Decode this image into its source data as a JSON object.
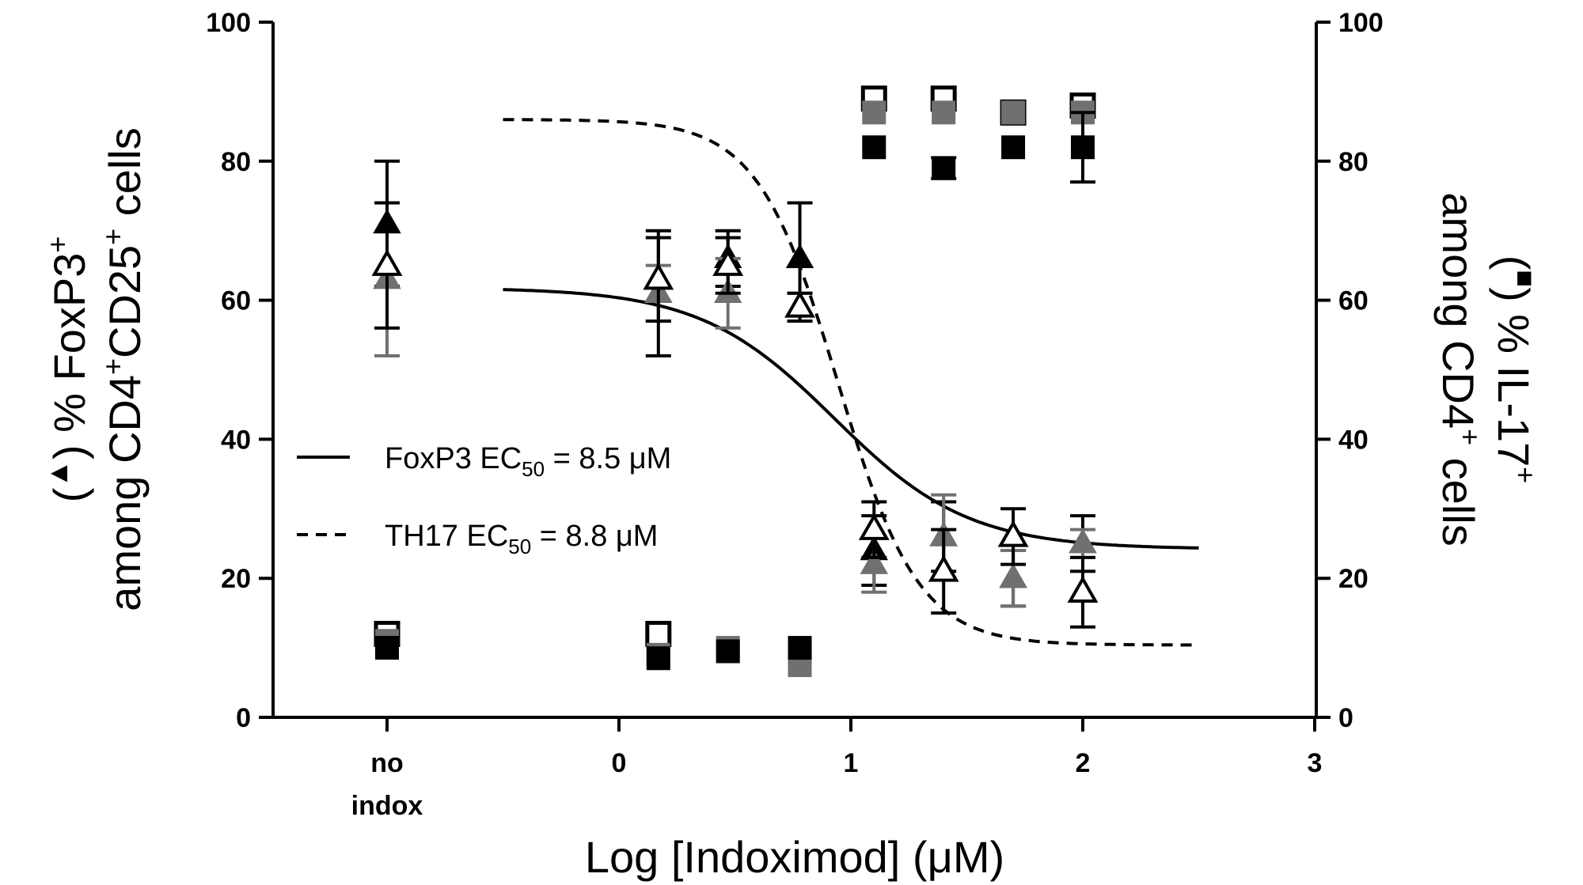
{
  "chart_data": {
    "type": "scatter",
    "xlabel": "Log [Indoximod] (μM)",
    "ylabel_left": {
      "line1_parts": [
        "(",
        "▲",
        ") % FoxP3",
        "+"
      ],
      "line2_parts": [
        "among CD4",
        "+",
        "CD25",
        "+",
        " cells"
      ]
    },
    "ylabel_right": {
      "line1_parts": [
        "(",
        "■",
        ") % IL-17",
        "+"
      ],
      "line2_parts": [
        "among CD4",
        "+",
        " cells"
      ]
    },
    "x_ticks": [
      "0",
      "1",
      "2",
      "3"
    ],
    "x_category_label_lines": [
      "no",
      "indox"
    ],
    "xlim": [
      -1,
      3
    ],
    "ylim": [
      0,
      100
    ],
    "y_ticks": [
      "0",
      "20",
      "40",
      "60",
      "80",
      "100"
    ],
    "y_right_ticks": [
      "0",
      "20",
      "40",
      "60",
      "80",
      "100"
    ],
    "legend": [
      {
        "line_style": "solid",
        "label_parts": [
          "FoxP3 EC",
          "50",
          " = 8.5 μM"
        ]
      },
      {
        "line_style": "dashed",
        "label_parts": [
          "TH17  EC",
          "50",
          " = 8.8 μM"
        ]
      }
    ],
    "fit_curves": [
      {
        "style": "solid",
        "ec50_log": 0.929,
        "top": 61.8,
        "bottom": 24.2,
        "hill": 1.5,
        "x_range": [
          -0.5,
          2.5
        ]
      },
      {
        "style": "dashed",
        "ec50_log": 0.944,
        "top": 86.0,
        "bottom": 10.4,
        "hill": 2.5,
        "x_range": [
          -0.5,
          2.5
        ]
      }
    ],
    "x_positions": [
      -1,
      0.17,
      0.47,
      0.78,
      1.1,
      1.4,
      1.7,
      2.0
    ],
    "foxp3_series": [
      {
        "color": "#000000",
        "marker": "triangle-filled",
        "values": [
          71,
          61,
          66,
          66,
          24,
          26,
          20,
          25
        ],
        "errors": [
          9,
          9,
          4,
          8,
          5,
          5,
          4,
          4
        ]
      },
      {
        "color": "#707070",
        "marker": "triangle-filled",
        "values": [
          63,
          61,
          61,
          59,
          22,
          26,
          20,
          25
        ],
        "errors": [
          11,
          4,
          5,
          2,
          4,
          6,
          4,
          2
        ]
      },
      {
        "color": "#000000",
        "marker": "triangle-open",
        "values": [
          65,
          63,
          65,
          59,
          27,
          21,
          26,
          18
        ],
        "errors": [
          9,
          6,
          4,
          2,
          4,
          6,
          4,
          5
        ]
      }
    ],
    "il17_series": [
      {
        "color": "#000000",
        "marker": "square-open",
        "values": [
          12,
          12,
          null,
          null,
          89,
          89,
          87,
          88
        ]
      },
      {
        "color": "#707070",
        "marker": "square-filled",
        "values": [
          11,
          9,
          10,
          7.5,
          87,
          87,
          87,
          87
        ]
      },
      {
        "color": "#000000",
        "marker": "square-filled",
        "values": [
          10,
          8.5,
          9.5,
          10,
          82,
          79,
          82,
          82
        ],
        "errors": [
          0,
          0,
          0,
          0,
          0,
          1.5,
          0,
          5
        ]
      }
    ]
  }
}
